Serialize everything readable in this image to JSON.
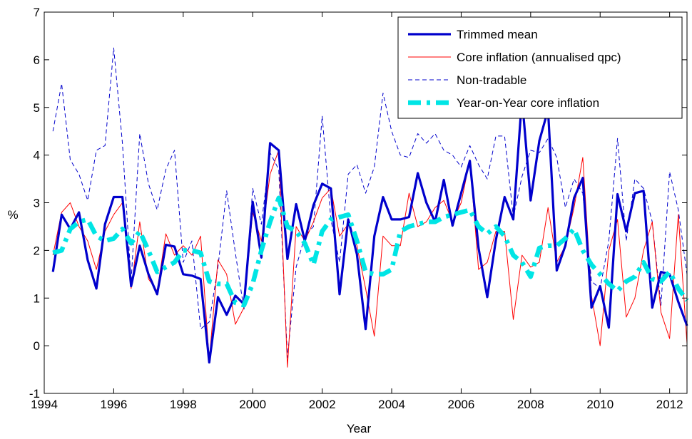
{
  "chart_data": {
    "type": "line",
    "title": "",
    "xlabel": "Year",
    "ylabel": "%",
    "xlim": [
      1994,
      2012.5
    ],
    "ylim": [
      -1,
      7
    ],
    "xticks": [
      1994,
      1996,
      1998,
      2000,
      2002,
      2004,
      2006,
      2008,
      2010,
      2012
    ],
    "yticks": [
      -1,
      0,
      1,
      2,
      3,
      4,
      5,
      6,
      7
    ],
    "legend_position": "top-right",
    "series": [
      {
        "name": "Trimmed mean",
        "color": "#0000CC",
        "style": "solid-thick",
        "x": [
          1994.25,
          1994.5,
          1994.75,
          1995,
          1995.25,
          1995.5,
          1995.75,
          1996,
          1996.25,
          1996.5,
          1996.75,
          1997,
          1997.25,
          1997.5,
          1997.75,
          1998,
          1998.25,
          1998.5,
          1998.75,
          1999,
          1999.25,
          1999.5,
          1999.75,
          2000,
          2000.25,
          2000.5,
          2000.75,
          2001,
          2001.25,
          2001.5,
          2001.75,
          2002,
          2002.25,
          2002.5,
          2002.75,
          2003,
          2003.25,
          2003.5,
          2003.75,
          2004,
          2004.25,
          2004.5,
          2004.75,
          2005,
          2005.25,
          2005.5,
          2005.75,
          2006,
          2006.25,
          2006.5,
          2006.75,
          2007,
          2007.25,
          2007.5,
          2007.75,
          2008,
          2008.25,
          2008.5,
          2008.75,
          2009,
          2009.25,
          2009.5,
          2009.75,
          2010,
          2010.25,
          2010.5,
          2010.75,
          2011,
          2011.25,
          2011.5,
          2011.75,
          2012,
          2012.25,
          2012.5
        ],
        "y": [
          1.55,
          2.75,
          2.45,
          2.8,
          1.8,
          1.2,
          2.55,
          3.12,
          3.12,
          1.25,
          2.1,
          1.5,
          1.08,
          2.12,
          2.08,
          1.5,
          1.47,
          1.4,
          -0.35,
          1.02,
          0.65,
          1.05,
          0.87,
          3.02,
          1.85,
          4.25,
          4.1,
          1.82,
          2.97,
          2.2,
          2.95,
          3.4,
          3.3,
          1.08,
          2.65,
          1.92,
          0.35,
          2.3,
          3.12,
          2.65,
          2.65,
          2.7,
          3.62,
          3.0,
          2.6,
          3.48,
          2.52,
          3.2,
          3.88,
          2.05,
          1.02,
          2.22,
          3.12,
          2.65,
          5.2,
          3.05,
          4.3,
          4.95,
          1.58,
          2.1,
          3.1,
          3.52,
          0.8,
          1.25,
          0.38,
          3.18,
          2.4,
          3.2,
          3.25,
          0.8,
          1.55,
          1.5,
          0.92,
          0.42
        ]
      },
      {
        "name": "Core inflation (annualised qpc)",
        "color": "#FF0000",
        "style": "solid-thin",
        "x": [
          1994.25,
          1994.5,
          1994.75,
          1995,
          1995.25,
          1995.5,
          1995.75,
          1996,
          1996.25,
          1996.5,
          1996.75,
          1997,
          1997.25,
          1997.5,
          1997.75,
          1998,
          1998.25,
          1998.5,
          1998.75,
          1999,
          1999.25,
          1999.5,
          1999.75,
          2000,
          2000.25,
          2000.5,
          2000.75,
          2001,
          2001.25,
          2001.5,
          2001.75,
          2002,
          2002.25,
          2002.5,
          2002.75,
          2003,
          2003.25,
          2003.5,
          2003.75,
          2004,
          2004.25,
          2004.5,
          2004.75,
          2005,
          2005.25,
          2005.5,
          2005.75,
          2006,
          2006.25,
          2006.5,
          2006.75,
          2007,
          2007.25,
          2007.5,
          2007.75,
          2008,
          2008.25,
          2008.5,
          2008.75,
          2009,
          2009.25,
          2009.5,
          2009.75,
          2010,
          2010.25,
          2010.5,
          2010.75,
          2011,
          2011.25,
          2011.5,
          2011.75,
          2012,
          2012.25,
          2012.5
        ],
        "y": [
          1.9,
          2.8,
          3.0,
          2.5,
          2.2,
          1.6,
          2.4,
          2.75,
          3.0,
          1.2,
          2.6,
          1.4,
          1.15,
          2.35,
          1.9,
          2.1,
          1.9,
          2.3,
          -0.3,
          1.8,
          1.5,
          0.45,
          0.8,
          2.8,
          2.2,
          3.6,
          4.1,
          -0.45,
          2.5,
          2.2,
          2.6,
          3.1,
          3.3,
          2.3,
          2.55,
          2.1,
          1.2,
          0.2,
          2.3,
          2.1,
          2.1,
          3.2,
          2.5,
          2.6,
          2.9,
          3.05,
          2.6,
          3.0,
          3.9,
          1.6,
          1.75,
          2.4,
          2.4,
          0.55,
          1.9,
          1.65,
          1.75,
          2.9,
          1.75,
          2.1,
          2.9,
          3.95,
          1.05,
          0.0,
          2.0,
          2.65,
          0.6,
          1.0,
          2.0,
          2.6,
          0.7,
          0.15,
          2.75,
          0.05
        ]
      },
      {
        "name": "Non-tradable",
        "color": "#0000CC",
        "style": "dashed-thin",
        "x": [
          1994.25,
          1994.5,
          1994.75,
          1995,
          1995.25,
          1995.5,
          1995.75,
          1996,
          1996.25,
          1996.5,
          1996.75,
          1997,
          1997.25,
          1997.5,
          1997.75,
          1998,
          1998.25,
          1998.5,
          1998.75,
          1999,
          1999.25,
          1999.5,
          1999.75,
          2000,
          2000.25,
          2000.5,
          2000.75,
          2001,
          2001.25,
          2001.5,
          2001.75,
          2002,
          2002.25,
          2002.5,
          2002.75,
          2003,
          2003.25,
          2003.5,
          2003.75,
          2004,
          2004.25,
          2004.5,
          2004.75,
          2005,
          2005.25,
          2005.5,
          2005.75,
          2006,
          2006.25,
          2006.5,
          2006.75,
          2007,
          2007.25,
          2007.5,
          2007.75,
          2008,
          2008.25,
          2008.5,
          2008.75,
          2009,
          2009.25,
          2009.5,
          2009.75,
          2010,
          2010.25,
          2010.5,
          2010.75,
          2011,
          2011.25,
          2011.5,
          2011.75,
          2012,
          2012.25,
          2012.5
        ],
        "y": [
          4.5,
          5.5,
          3.9,
          3.6,
          3.05,
          4.1,
          4.2,
          6.25,
          4.25,
          1.35,
          4.45,
          3.4,
          2.85,
          3.7,
          4.1,
          1.75,
          2.2,
          0.35,
          0.5,
          1.65,
          3.25,
          1.95,
          0.75,
          3.3,
          2.55,
          4.05,
          3.7,
          -0.25,
          1.65,
          2.3,
          2.5,
          4.82,
          2.65,
          1.75,
          3.6,
          3.8,
          3.2,
          3.75,
          5.3,
          4.5,
          4.0,
          3.95,
          4.45,
          4.25,
          4.45,
          4.1,
          4.0,
          3.75,
          4.2,
          3.8,
          3.5,
          4.4,
          4.4,
          2.7,
          3.55,
          4.1,
          4.05,
          4.35,
          3.95,
          2.9,
          3.5,
          3.2,
          1.35,
          1.2,
          2.2,
          4.35,
          2.2,
          3.5,
          3.3,
          2.6,
          0.85,
          3.65,
          2.85,
          1.5
        ]
      },
      {
        "name": "Year-on-Year core inflation",
        "color": "#00E5E5",
        "style": "dashdot-thick",
        "x": [
          1994.25,
          1994.5,
          1994.75,
          1995,
          1995.25,
          1995.5,
          1995.75,
          1996,
          1996.25,
          1996.5,
          1996.75,
          1997,
          1997.25,
          1997.5,
          1997.75,
          1998,
          1998.25,
          1998.5,
          1998.75,
          1999,
          1999.25,
          1999.5,
          1999.75,
          2000,
          2000.25,
          2000.5,
          2000.75,
          2001,
          2001.25,
          2001.5,
          2001.75,
          2002,
          2002.25,
          2002.5,
          2002.75,
          2003,
          2003.25,
          2003.5,
          2003.75,
          2004,
          2004.25,
          2004.5,
          2004.75,
          2005,
          2005.25,
          2005.5,
          2005.75,
          2006,
          2006.25,
          2006.5,
          2006.75,
          2007,
          2007.25,
          2007.5,
          2007.75,
          2008,
          2008.25,
          2008.5,
          2008.75,
          2009,
          2009.25,
          2009.5,
          2009.75,
          2010,
          2010.25,
          2010.5,
          2010.75,
          2011,
          2011.25,
          2011.5,
          2011.75,
          2012,
          2012.25,
          2012.5
        ],
        "y": [
          1.95,
          2.0,
          2.45,
          2.6,
          2.65,
          2.3,
          2.2,
          2.25,
          2.45,
          2.15,
          2.4,
          2.0,
          1.55,
          1.65,
          1.75,
          2.0,
          2.0,
          1.95,
          1.35,
          1.3,
          1.3,
          0.9,
          0.85,
          1.3,
          2.0,
          2.6,
          3.1,
          2.5,
          2.4,
          2.15,
          1.7,
          2.4,
          2.65,
          2.7,
          2.75,
          2.2,
          1.55,
          1.5,
          1.5,
          1.6,
          2.4,
          2.5,
          2.55,
          2.6,
          2.6,
          2.7,
          2.75,
          2.8,
          2.85,
          2.5,
          2.35,
          2.5,
          2.3,
          1.9,
          1.75,
          1.45,
          2.05,
          2.1,
          2.1,
          2.25,
          2.45,
          2.0,
          1.7,
          1.5,
          1.3,
          1.15,
          1.35,
          1.45,
          1.75,
          1.4,
          1.35,
          1.55,
          1.2,
          0.95
        ]
      }
    ]
  }
}
